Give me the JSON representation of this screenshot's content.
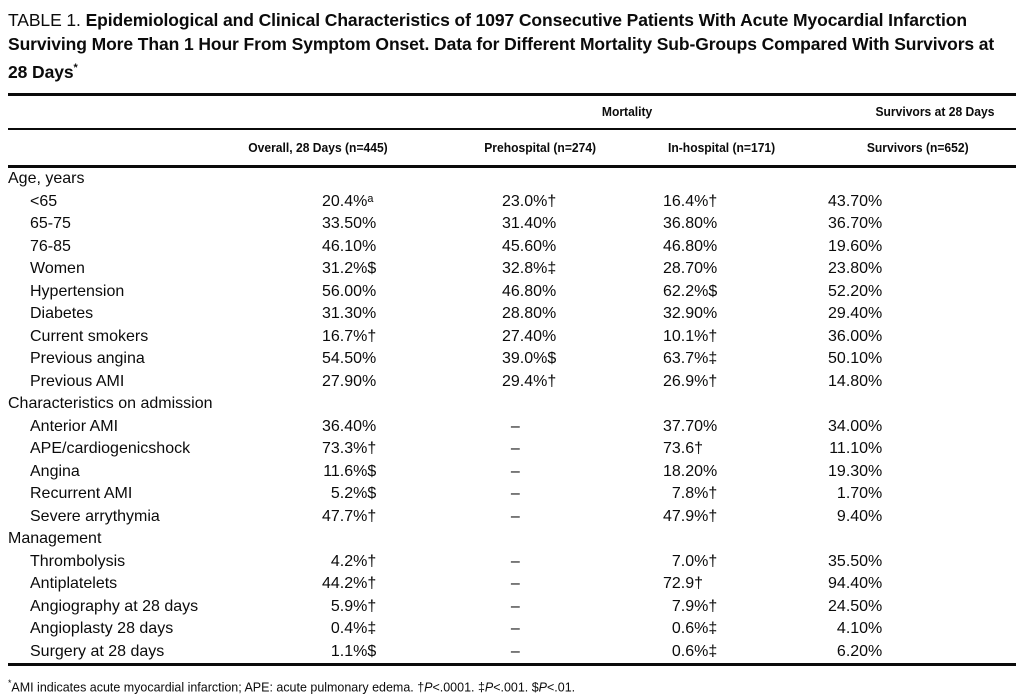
{
  "title": {
    "label": "TABLE 1.",
    "text": " Epidemiological and Clinical Characteristics of 1097 Consecutive Patients With Acute Myocardial Infarction Surviving More Than 1 Hour From Symptom Onset. Data for Different Mortality Sub-Groups Compared With Survivors at 28 Days",
    "asterisk": "*"
  },
  "table": {
    "span_headers": [
      {
        "label": "Mortality"
      },
      {
        "label": "Survivors at 28 Days"
      }
    ],
    "column_headers": [
      "",
      "Overall, 28 Days (n=445)",
      "Prehospital (n=274)",
      "In-hospital (n=171)",
      "Survivors (n=652)"
    ],
    "sections": [
      {
        "header": "Age, years",
        "rows": [
          {
            "label": "<65",
            "values": [
              "20.4%ᵃ",
              "23.0%†",
              "16.4%†",
              "43.70%"
            ]
          },
          {
            "label": "65-75",
            "values": [
              "33.50%",
              "31.40%",
              "36.80%",
              "36.70%"
            ]
          },
          {
            "label": "76-85",
            "values": [
              "46.10%",
              "45.60%",
              "46.80%",
              "19.60%"
            ]
          },
          {
            "label": "Women",
            "values": [
              "31.2%$",
              "32.8%‡",
              "28.70%",
              "23.80%"
            ]
          },
          {
            "label": "Hypertension",
            "values": [
              "56.00%",
              "46.80%",
              "62.2%$",
              "52.20%"
            ]
          },
          {
            "label": "Diabetes",
            "values": [
              "31.30%",
              "28.80%",
              "32.90%",
              "29.40%"
            ]
          },
          {
            "label": "Current smokers",
            "values": [
              "16.7%†",
              "27.40%",
              "10.1%†",
              "36.00%"
            ]
          },
          {
            "label": "Previous angina",
            "values": [
              "54.50%",
              "39.0%$",
              "63.7%‡",
              "50.10%"
            ]
          },
          {
            "label": "Previous AMI",
            "values": [
              "27.90%",
              "29.4%†",
              "26.9%†",
              "14.80%"
            ]
          }
        ]
      },
      {
        "header": "Characteristics on admission",
        "rows": [
          {
            "label": "Anterior AMI",
            "values": [
              "36.40%",
              "–",
              "37.70%",
              "34.00%"
            ]
          },
          {
            "label": "APE/cardiogenicshock",
            "values": [
              "73.3%†",
              "–",
              "73.6†",
              "11.10%"
            ]
          },
          {
            "label": "Angina",
            "values": [
              "11.6%$",
              "–",
              "18.20%",
              "19.30%"
            ]
          },
          {
            "label": "Recurrent AMI",
            "values": [
              "5.2%$",
              "–",
              "7.8%†",
              "1.70%"
            ]
          },
          {
            "label": "Severe arrythymia",
            "values": [
              "47.7%†",
              "–",
              "47.9%†",
              "9.40%"
            ]
          }
        ]
      },
      {
        "header": "Management",
        "rows": [
          {
            "label": "Thrombolysis",
            "values": [
              "4.2%†",
              "–",
              "7.0%†",
              "35.50%"
            ]
          },
          {
            "label": "Antiplatelets",
            "values": [
              "44.2%†",
              "–",
              "72.9†",
              "94.40%"
            ]
          },
          {
            "label": "Angiography at 28 days",
            "values": [
              "5.9%†",
              "–",
              "7.9%†",
              "24.50%"
            ]
          },
          {
            "label": "Angioplasty 28 days",
            "values": [
              "0.4%‡",
              "–",
              "0.6%‡",
              "4.10%"
            ]
          },
          {
            "label": "Surgery at 28 days",
            "values": [
              "1.1%$",
              "–",
              "0.6%‡",
              "6.20%"
            ]
          }
        ]
      }
    ]
  },
  "footnote": {
    "segments": [
      {
        "text": "*",
        "sup": true
      },
      {
        "text": "AMI indicates acute myocardial infarction; APE: acute pulmonary edema. †"
      },
      {
        "text": "P",
        "italic": true
      },
      {
        "text": "<.0001. ‡"
      },
      {
        "text": "P",
        "italic": true
      },
      {
        "text": "<.001. $"
      },
      {
        "text": "P",
        "italic": true
      },
      {
        "text": "<.01."
      }
    ]
  }
}
